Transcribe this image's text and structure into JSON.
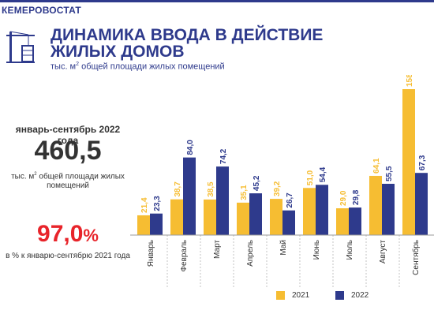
{
  "header": {
    "org_name": "КЕМЕРОВОСТАТ",
    "title": "ДИНАМИКА ВВОДА В ДЕЙСТВИЕ ЖИЛЫХ ДОМОВ",
    "subtitle_pre": "тыс. м",
    "subtitle_sup": "2",
    "subtitle_post": " общей площади  жилых помещений"
  },
  "summary": {
    "period": "январь-сентябрь 2022 года",
    "total": "460,5",
    "unit_pre": "тыс. м",
    "unit_sup": "2",
    "unit_post": " общей площади жилых помещений",
    "percent_value": "97,0",
    "percent_sign": "%",
    "percent_note": "в % к январю-сентябрю 2021 года"
  },
  "colors": {
    "series_2021": "#f6bd32",
    "series_2022": "#2e3a8c",
    "accent": "#2e3a8c",
    "highlight": "#e8242a"
  },
  "chart_data": {
    "type": "bar",
    "categories": [
      "Январь",
      "Февраль",
      "Март",
      "Апрель",
      "Май",
      "Июнь",
      "Июль",
      "Август",
      "Сентябрь"
    ],
    "series": [
      {
        "name": "2021",
        "values": [
          21.4,
          38.7,
          38.5,
          35.1,
          39.2,
          51.0,
          29.0,
          64.1,
          158.0
        ]
      },
      {
        "name": "2022",
        "values": [
          23.3,
          84.0,
          74.2,
          45.2,
          26.7,
          54.4,
          29.8,
          55.5,
          67.3
        ]
      }
    ],
    "labels": {
      "2021": [
        "21,4",
        "38,7",
        "38,5",
        "35,1",
        "39,2",
        "51,0",
        "29,0",
        "64,1",
        "158,0"
      ],
      "2022": [
        "23,3",
        "84,0",
        "74,2",
        "45,2",
        "26,7",
        "54,4",
        "29,8",
        "55,5",
        "67,3"
      ]
    },
    "ylim": [
      0,
      158
    ],
    "legend_position": "bottom"
  }
}
